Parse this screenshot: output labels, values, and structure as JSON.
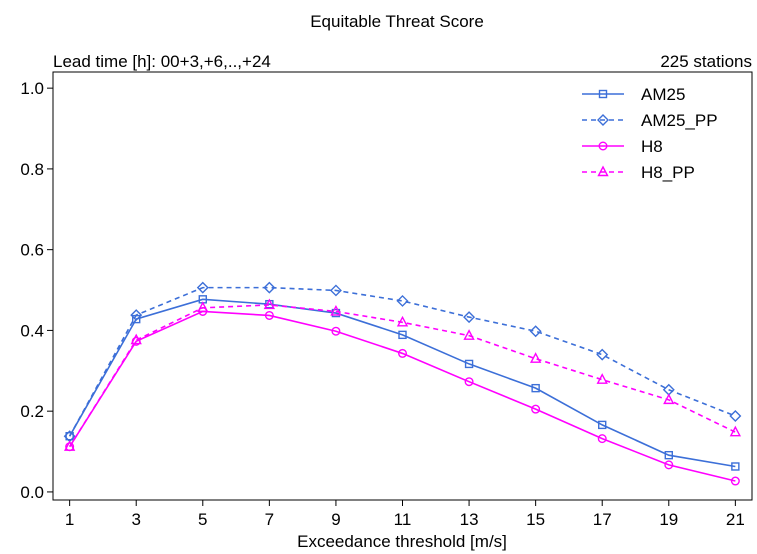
{
  "chart_data": {
    "type": "line",
    "title": "Equitable Threat Score",
    "subtitle_left": "Lead time [h]: 00+3,+6,..,+24",
    "subtitle_right": "225 stations",
    "xlabel": "Exceedance threshold [m/s]",
    "ylabel": "",
    "x": [
      1,
      3,
      5,
      7,
      9,
      11,
      13,
      15,
      17,
      19,
      21
    ],
    "xticks": [
      "1",
      "3",
      "5",
      "7",
      "9",
      "11",
      "13",
      "15",
      "17",
      "19",
      "21"
    ],
    "yticks": [
      "0.0",
      "0.2",
      "0.4",
      "0.6",
      "0.8",
      "1.0"
    ],
    "ytick_values": [
      0.0,
      0.2,
      0.4,
      0.6,
      0.8,
      1.0
    ],
    "xlim": [
      0.5,
      21.5
    ],
    "ylim": [
      -0.02,
      1.04
    ],
    "grid": false,
    "legend_position": "top-right",
    "series": [
      {
        "name": "AM25",
        "color": "#3c6fd8",
        "dash": "solid",
        "marker": "square",
        "values": [
          0.138,
          0.428,
          0.477,
          0.465,
          0.443,
          0.389,
          0.317,
          0.257,
          0.166,
          0.091,
          0.063
        ]
      },
      {
        "name": "AM25_PP",
        "color": "#3c6fd8",
        "dash": "dashed",
        "marker": "diamond",
        "values": [
          0.138,
          0.438,
          0.506,
          0.506,
          0.499,
          0.473,
          0.433,
          0.398,
          0.34,
          0.253,
          0.188
        ]
      },
      {
        "name": "H8",
        "color": "#ff00ff",
        "dash": "solid",
        "marker": "circle",
        "values": [
          0.112,
          0.373,
          0.447,
          0.437,
          0.398,
          0.343,
          0.273,
          0.205,
          0.132,
          0.067,
          0.027
        ]
      },
      {
        "name": "H8_PP",
        "color": "#ff00ff",
        "dash": "dashed",
        "marker": "triangle",
        "values": [
          0.112,
          0.376,
          0.456,
          0.463,
          0.447,
          0.42,
          0.387,
          0.33,
          0.278,
          0.228,
          0.148
        ]
      }
    ]
  }
}
